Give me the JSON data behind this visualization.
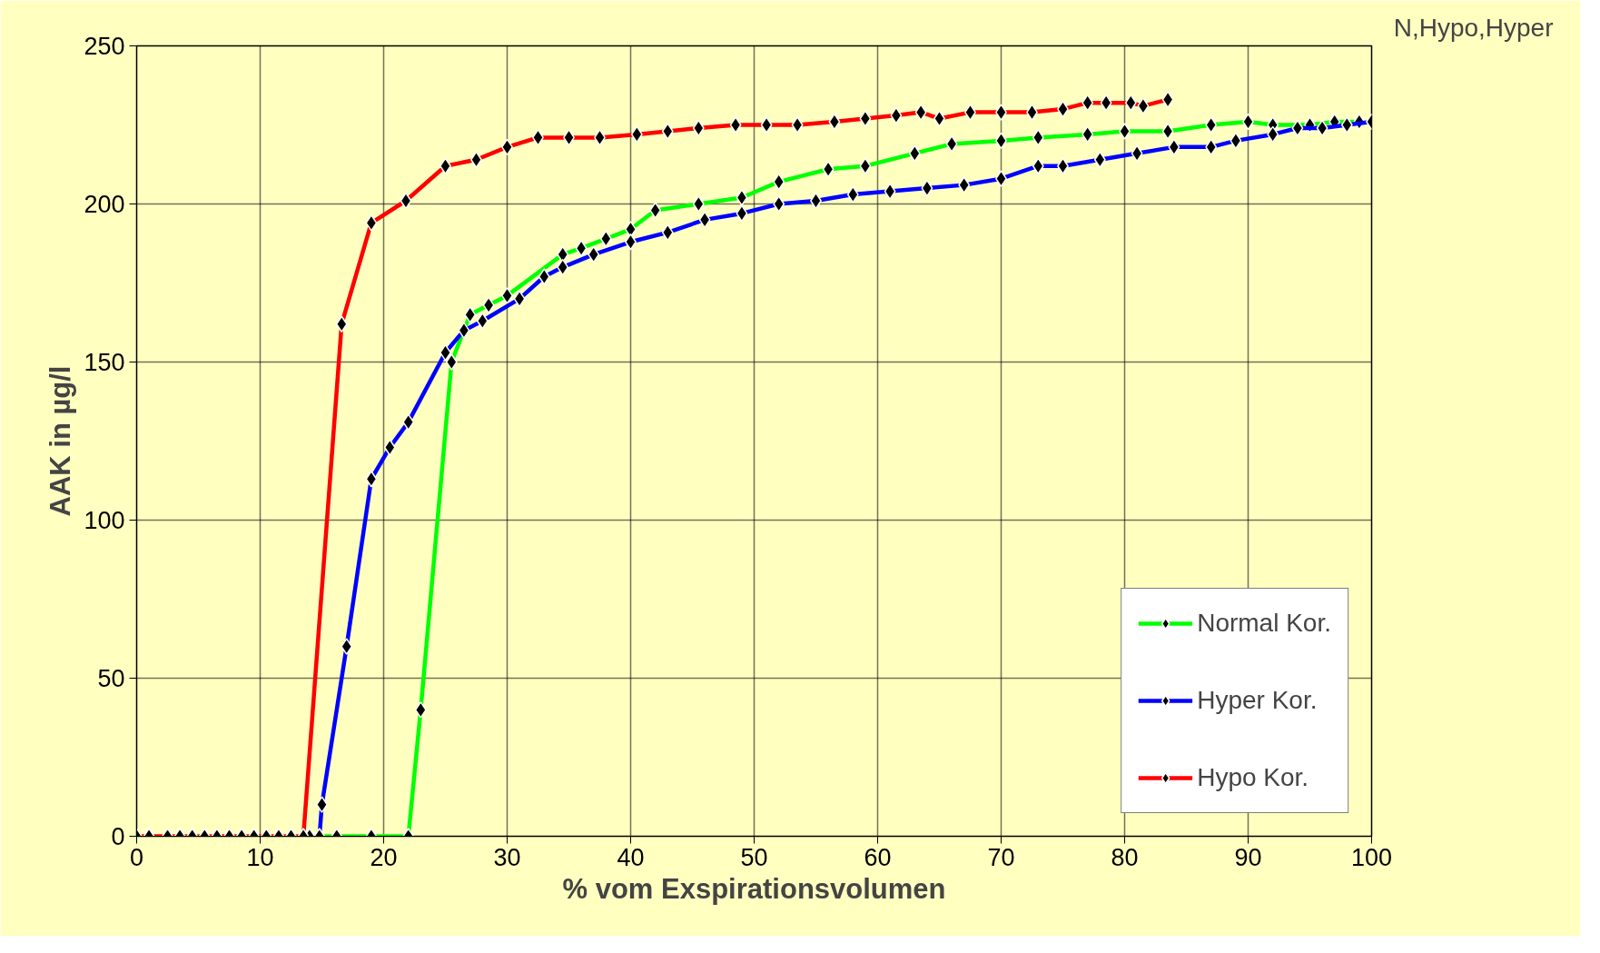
{
  "chart_data": {
    "type": "line",
    "xlabel": "% vom Exspirationsvolumen",
    "ylabel": "AAK in µg/l",
    "annotations": [
      "N,Hypo,Hyper"
    ],
    "xlim": [
      0,
      100
    ],
    "ylim": [
      0,
      250
    ],
    "xticks": [
      0,
      10,
      20,
      30,
      40,
      50,
      60,
      70,
      80,
      90,
      100
    ],
    "yticks": [
      0,
      50,
      100,
      150,
      200,
      250
    ],
    "grid": true,
    "legend": "bottom right",
    "marker": "diamond",
    "line_style": "solid",
    "series": [
      {
        "name": "Normal Kor.",
        "color": "#00ff00",
        "x": [
          14,
          16.2,
          19,
          22,
          23,
          25.5,
          27,
          28.5,
          30,
          34.5,
          36,
          38,
          40,
          42,
          45.5,
          49,
          52,
          56,
          59,
          63,
          66,
          70,
          73,
          77,
          80,
          83.5,
          87,
          90,
          92,
          95,
          97,
          99
        ],
        "values": [
          0,
          0,
          0,
          0,
          40,
          150,
          165,
          168,
          171,
          184,
          186,
          189,
          192,
          198,
          200,
          202,
          207,
          211,
          212,
          216,
          219,
          220,
          221,
          222,
          223,
          223,
          225,
          226,
          225,
          225,
          226,
          226
        ]
      },
      {
        "name": "Hyper Kor.",
        "color": "#0000ff",
        "x": [
          14.8,
          15,
          17,
          19,
          20.5,
          22,
          25,
          26.5,
          28,
          31,
          33,
          34.5,
          37,
          40,
          43,
          46,
          49,
          52,
          55,
          58,
          61,
          64,
          67,
          70,
          73,
          75,
          78,
          81,
          84,
          87,
          89,
          92,
          94,
          96,
          98,
          100
        ],
        "values": [
          0,
          10,
          60,
          113,
          123,
          131,
          153,
          160,
          163,
          170,
          177,
          180,
          184,
          188,
          191,
          195,
          197,
          200,
          201,
          203,
          204,
          205,
          206,
          208,
          212,
          212,
          214,
          216,
          218,
          218,
          220,
          222,
          224,
          224,
          225,
          226
        ]
      },
      {
        "name": "Hypo Kor.",
        "color": "#ff0000",
        "x": [
          0,
          1,
          2.5,
          3.5,
          4.5,
          5.5,
          6.5,
          7.5,
          8.5,
          9.5,
          10.5,
          11.5,
          12.5,
          13.5,
          16.6,
          19,
          21.8,
          25,
          27.5,
          30,
          32.5,
          35,
          37.5,
          40.5,
          43,
          45.5,
          48.5,
          51,
          53.5,
          56.5,
          59,
          61.5,
          63.5,
          65,
          67.5,
          70,
          72.5,
          75,
          77,
          78.5,
          80.5,
          81.5,
          83.5
        ],
        "values": [
          0,
          0,
          0,
          0,
          0,
          0,
          0,
          0,
          0,
          0,
          0,
          0,
          0,
          0,
          162,
          194,
          201,
          212,
          214,
          218,
          221,
          221,
          221,
          222,
          223,
          224,
          225,
          225,
          225,
          226,
          227,
          228,
          229,
          227,
          229,
          229,
          229,
          230,
          232,
          232,
          232,
          231,
          233
        ]
      }
    ]
  }
}
